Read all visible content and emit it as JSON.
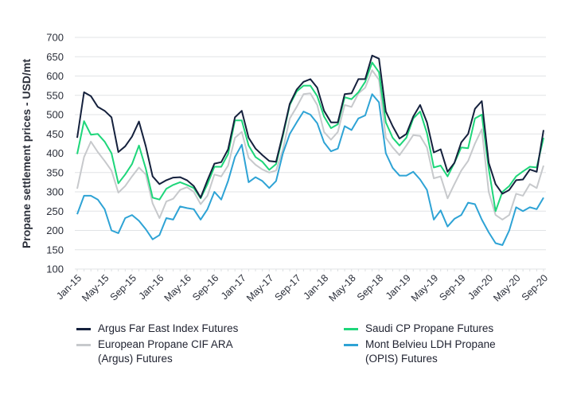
{
  "chart_data": {
    "type": "line",
    "title": "",
    "xlabel": "",
    "ylabel": "Propane settlement prices - USD/mt",
    "ylim": [
      100,
      700
    ],
    "yticks": [
      100,
      150,
      200,
      250,
      300,
      350,
      400,
      450,
      500,
      550,
      600,
      650,
      700
    ],
    "grid": true,
    "legend_position": "bottom",
    "x": [
      "Jan-15",
      "Feb-15",
      "Mar-15",
      "Apr-15",
      "May-15",
      "Jun-15",
      "Jul-15",
      "Aug-15",
      "Sep-15",
      "Oct-15",
      "Nov-15",
      "Dec-15",
      "Jan-16",
      "Feb-16",
      "Mar-16",
      "Apr-16",
      "May-16",
      "Jun-16",
      "Jul-16",
      "Aug-16",
      "Sep-16",
      "Oct-16",
      "Nov-16",
      "Dec-16",
      "Jan-17",
      "Feb-17",
      "Mar-17",
      "Apr-17",
      "May-17",
      "Jun-17",
      "Jul-17",
      "Aug-17",
      "Sep-17",
      "Oct-17",
      "Nov-17",
      "Dec-17",
      "Jan-18",
      "Feb-18",
      "Mar-18",
      "Apr-18",
      "May-18",
      "Jun-18",
      "Jul-18",
      "Aug-18",
      "Sep-18",
      "Oct-18",
      "Nov-18",
      "Dec-18",
      "Jan-19",
      "Feb-19",
      "Mar-19",
      "Apr-19",
      "May-19",
      "Jun-19",
      "Jul-19",
      "Aug-19",
      "Sep-19",
      "Oct-19",
      "Nov-19",
      "Dec-19",
      "Jan-20",
      "Feb-20",
      "Mar-20",
      "Apr-20",
      "May-20",
      "Jun-20",
      "Jul-20",
      "Aug-20",
      "Sep-20"
    ],
    "xtick_labels": [
      "Jan-15",
      "May-15",
      "Sep-15",
      "Jan-16",
      "May-16",
      "Sep-16",
      "Jan-17",
      "May-17",
      "Sep-17",
      "Jan-18",
      "May-18",
      "Sep-18",
      "Jan-19",
      "May-19",
      "Sep-19",
      "Jan-20",
      "May-20",
      "Sep-20"
    ],
    "series": [
      {
        "name": "Argus Far East Index Futures",
        "color": "#15213d",
        "values": [
          440,
          558,
          548,
          520,
          510,
          493,
          403,
          418,
          443,
          482,
          418,
          340,
          320,
          330,
          337,
          338,
          330,
          315,
          285,
          330,
          373,
          377,
          410,
          493,
          510,
          440,
          412,
          395,
          380,
          378,
          450,
          528,
          565,
          585,
          592,
          570,
          510,
          480,
          480,
          553,
          555,
          592,
          592,
          653,
          645,
          508,
          470,
          438,
          450,
          495,
          525,
          480,
          402,
          410,
          352,
          375,
          428,
          450,
          515,
          535,
          375,
          320,
          295,
          305,
          330,
          332,
          358,
          352,
          460
        ]
      },
      {
        "name": "Saudi CP Propane Futures",
        "color": "#1ed67a",
        "values": [
          398,
          483,
          448,
          450,
          430,
          400,
          322,
          345,
          372,
          420,
          360,
          285,
          280,
          308,
          318,
          325,
          318,
          310,
          283,
          320,
          365,
          365,
          398,
          485,
          485,
          420,
          390,
          378,
          357,
          372,
          445,
          525,
          560,
          575,
          575,
          548,
          495,
          465,
          475,
          545,
          540,
          558,
          585,
          635,
          610,
          480,
          440,
          420,
          440,
          490,
          508,
          452,
          363,
          368,
          340,
          375,
          415,
          413,
          490,
          500,
          360,
          250,
          300,
          315,
          340,
          353,
          365,
          363,
          440
        ]
      },
      {
        "name": "European Propane CIF ARA (Argus) Futures",
        "color": "#c7c9cc",
        "values": [
          308,
          390,
          430,
          403,
          380,
          355,
          298,
          315,
          340,
          363,
          345,
          270,
          232,
          275,
          282,
          305,
          312,
          300,
          268,
          290,
          345,
          340,
          368,
          440,
          455,
          388,
          370,
          358,
          350,
          355,
          410,
          490,
          520,
          553,
          555,
          525,
          455,
          435,
          455,
          525,
          520,
          555,
          570,
          615,
          590,
          440,
          415,
          395,
          420,
          447,
          445,
          415,
          335,
          340,
          283,
          320,
          355,
          380,
          425,
          462,
          300,
          240,
          228,
          240,
          295,
          290,
          320,
          310,
          368
        ]
      },
      {
        "name": "Mont Belvieu LDH Propane (OPIS) Futures",
        "color": "#2ea3d5",
        "values": [
          242,
          290,
          290,
          280,
          255,
          200,
          193,
          232,
          240,
          225,
          203,
          177,
          188,
          232,
          228,
          262,
          258,
          255,
          228,
          255,
          300,
          280,
          328,
          390,
          422,
          325,
          338,
          328,
          310,
          328,
          400,
          450,
          480,
          508,
          500,
          478,
          428,
          405,
          412,
          470,
          460,
          490,
          498,
          553,
          532,
          400,
          362,
          342,
          342,
          352,
          332,
          305,
          228,
          252,
          210,
          230,
          240,
          272,
          268,
          228,
          195,
          167,
          162,
          200,
          260,
          250,
          260,
          255,
          285
        ]
      }
    ]
  }
}
